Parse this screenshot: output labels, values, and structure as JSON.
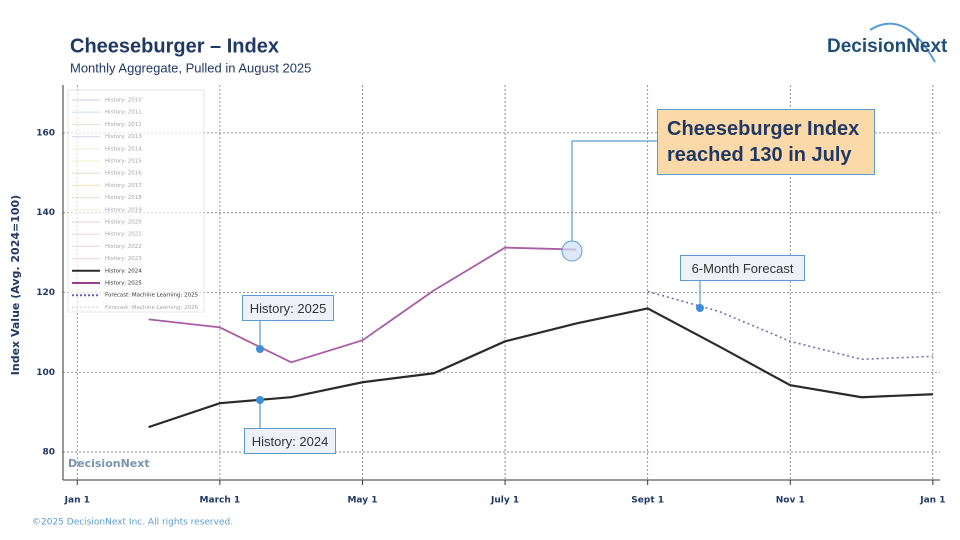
{
  "chart_data": {
    "type": "line",
    "title": "Cheeseburger – Index",
    "subtitle": "Monthly Aggregate, Pulled in August 2025",
    "logo": "DecisionNext",
    "footer": "©2025 DecisionNext Inc. All rights reserved.",
    "y_label": "Index Value (Avg. 2024=100)",
    "xlim": [
      -0.2,
      12.1
    ],
    "xticks": [
      {
        "value": 0,
        "label": "Jan 1"
      },
      {
        "value": 2,
        "label": "March 1"
      },
      {
        "value": 4,
        "label": "May 1"
      },
      {
        "value": 6,
        "label": "July 1"
      },
      {
        "value": 8,
        "label": "Sept 1"
      },
      {
        "value": 10,
        "label": "Nov 1"
      },
      {
        "value": 12,
        "label": "Jan 1"
      }
    ],
    "ylim": [
      73,
      172
    ],
    "yticks": [
      80,
      100,
      120,
      140,
      160
    ],
    "grid": true,
    "legend_entries": [
      {
        "name": "History: 2010",
        "color": "#b8b3e0"
      },
      {
        "name": "History: 2011",
        "color": "#a9c9e8"
      },
      {
        "name": "History: 2012",
        "color": "#b9d4a8"
      },
      {
        "name": "History: 2013",
        "color": "#c9b8d8"
      },
      {
        "name": "History: 2014",
        "color": "#d8e6b8"
      },
      {
        "name": "History: 2015",
        "color": "#e0e8a8"
      },
      {
        "name": "History: 2016",
        "color": "#c8c0a0"
      },
      {
        "name": "History: 2017",
        "color": "#e8d090"
      },
      {
        "name": "History: 2018",
        "color": "#d8c8a8"
      },
      {
        "name": "History: 2019",
        "color": "#f0e0b0"
      },
      {
        "name": "History: 2020",
        "color": "#d8b0b8"
      },
      {
        "name": "History: 2021",
        "color": "#e8b0c8"
      },
      {
        "name": "History: 2022",
        "color": "#f0b8c8"
      },
      {
        "name": "History: 2023",
        "color": "#e8b8d0"
      },
      {
        "name": "History: 2024",
        "color": "#2b2b2b"
      },
      {
        "name": "History: 2025",
        "color": "#9b3d8e"
      },
      {
        "name": "Forecast: Machine Learning: 2025",
        "color": "#6a5acd"
      },
      {
        "name": "Forecast: Machine Learning: 2026",
        "color": "#b0b0d8"
      }
    ],
    "series": [
      {
        "name": "History: 2024",
        "color": "#2b2b2b",
        "dash": false,
        "width": 2.2,
        "x": [
          1,
          2,
          3,
          4,
          5,
          6,
          7,
          8,
          9,
          10,
          11,
          12
        ],
        "values": [
          86.25,
          92.25,
          93.75,
          97.5,
          99.75,
          107.75,
          112.25,
          116,
          106.5,
          96.75,
          93.75,
          94.5
        ]
      },
      {
        "name": "History: 2025",
        "color": "#a95ea3",
        "dash": false,
        "width": 1.8,
        "x": [
          1,
          2,
          3,
          4,
          5,
          6,
          7
        ],
        "values": [
          113.25,
          111.25,
          102.5,
          108,
          120.5,
          131.25,
          130.75
        ]
      },
      {
        "name": "Forecast: Machine Learning: 2025",
        "color": "#7a6bb0",
        "dash": true,
        "width": 1.6,
        "x": [
          8,
          9,
          10,
          11,
          12
        ],
        "values": [
          120.25,
          115.25,
          107.75,
          103.25,
          104
        ]
      }
    ],
    "annotations": [
      {
        "text": "Cheeseburger Index reached 130 in July"
      },
      {
        "text": "6-Month Forecast"
      },
      {
        "text": "History: 2025"
      },
      {
        "text": "History: 2024"
      }
    ]
  }
}
